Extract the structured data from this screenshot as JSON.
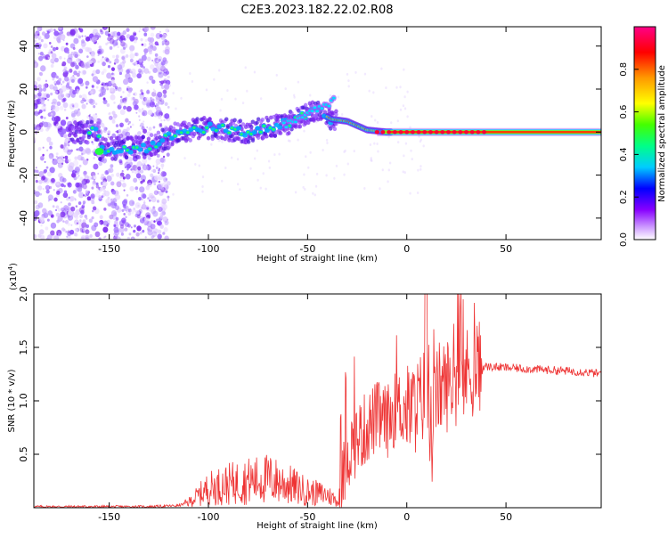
{
  "figure_title": "C2E3.2023.182.22.02.R08",
  "chart_data": [
    {
      "type": "heatmap",
      "title": "C2E3.2023.182.22.02.R08",
      "xlabel": "Height of straight line (km)",
      "ylabel": "Frequency (Hz)",
      "xlim": [
        -188,
        98
      ],
      "ylim": [
        -50,
        49
      ],
      "x_ticks": [
        -150,
        -100,
        -50,
        0,
        50
      ],
      "y_ticks": [
        -40,
        -20,
        0,
        20,
        40
      ],
      "colorbar": {
        "label": "Normalized spectral amplitude",
        "range": [
          0,
          1
        ],
        "ticks": [
          0.0,
          0.2,
          0.4,
          0.6,
          0.8
        ],
        "colors": [
          "#ffffff",
          "#8800ff",
          "#0000ff",
          "#00e0ff",
          "#00ff00",
          "#ffff00",
          "#ff8800",
          "#ff0000",
          "#ff0088"
        ]
      },
      "trace": {
        "description_points_x": [
          -155,
          -130,
          -115,
          -100,
          -80,
          -60,
          -45,
          -38,
          -30,
          -20,
          -10,
          0,
          20,
          50,
          98
        ],
        "description_points_y": [
          -8,
          -7,
          0,
          2,
          0,
          4,
          10,
          6,
          5,
          1,
          0,
          0,
          0,
          0,
          0
        ]
      },
      "noise_band_x": [
        -188,
        -120
      ]
    },
    {
      "type": "line",
      "title": "",
      "xlabel": "Height of straight line (km)",
      "ylabel": "SNR (10 * v/v)",
      "y_multiplier": "(x10^4)",
      "y_multiplier_base": "(x10",
      "y_multiplier_exp": "4",
      "y_multiplier_close": ")",
      "xlim": [
        -188,
        98
      ],
      "ylim": [
        0,
        2.0
      ],
      "x_ticks": [
        -150,
        -100,
        -50,
        0,
        50
      ],
      "y_ticks": [
        0.5,
        1.0,
        1.5,
        2.0
      ],
      "series_color": "#ee3333",
      "series": [
        {
          "name": "",
          "x": [
            -188,
            -170,
            -150,
            -130,
            -115,
            -110,
            -100,
            -90,
            -80,
            -70,
            -60,
            -50,
            -40,
            -34,
            -30,
            -25,
            -20,
            -15,
            -10,
            -5,
            0,
            5,
            10,
            12,
            15,
            20,
            25,
            30,
            35,
            40,
            50,
            60,
            70,
            80,
            90,
            98
          ],
          "y": [
            0.01,
            0.01,
            0.01,
            0.01,
            0.02,
            0.05,
            0.18,
            0.22,
            0.25,
            0.27,
            0.22,
            0.15,
            0.12,
            0.05,
            0.5,
            0.65,
            0.75,
            0.85,
            0.8,
            0.95,
            0.9,
            0.95,
            1.1,
            0.5,
            1.1,
            1.15,
            1.2,
            1.25,
            1.3,
            1.32,
            1.31,
            1.3,
            1.29,
            1.28,
            1.27,
            1.25
          ]
        }
      ]
    }
  ]
}
